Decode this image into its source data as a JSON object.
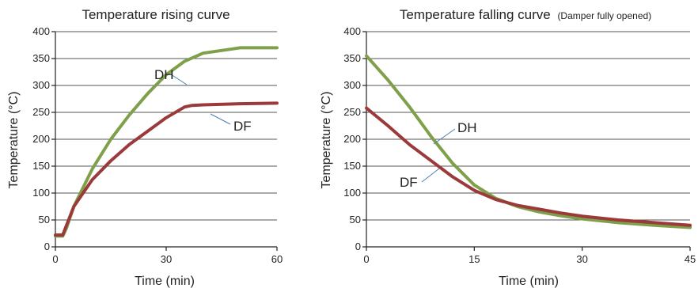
{
  "chart_data": [
    {
      "type": "line",
      "title": "Temperature rising curve",
      "xlabel": "Time (min)",
      "ylabel": "Temperature (°C)",
      "xlim": [
        0,
        60
      ],
      "ylim": [
        0,
        400
      ],
      "xticks": [
        "0",
        "30",
        "60"
      ],
      "yticks": [
        "0",
        "50",
        "100",
        "150",
        "200",
        "250",
        "300",
        "350",
        "400"
      ],
      "grid": true,
      "series": [
        {
          "name": "DH",
          "color": "#7fa04a",
          "x": [
            0,
            2,
            3,
            5,
            10,
            15,
            20,
            25,
            30,
            35,
            40,
            45,
            48,
            50,
            55,
            60
          ],
          "y": [
            20,
            20,
            35,
            75,
            145,
            200,
            245,
            285,
            320,
            345,
            360,
            365,
            368,
            370,
            370,
            370
          ]
        },
        {
          "name": "DF",
          "color": "#9b3a3a",
          "x": [
            0,
            2,
            3,
            5,
            10,
            15,
            20,
            25,
            30,
            35,
            37,
            40,
            50,
            60
          ],
          "y": [
            22,
            22,
            40,
            75,
            125,
            160,
            190,
            215,
            240,
            260,
            263,
            264,
            266,
            267
          ]
        }
      ]
    },
    {
      "type": "line",
      "title": "Temperature falling curve",
      "title_note": "(Damper fully opened)",
      "xlabel": "Time (min)",
      "ylabel": "Temperature (°C)",
      "xlim": [
        0,
        45
      ],
      "ylim": [
        0,
        400
      ],
      "xticks": [
        "0",
        "15",
        "30",
        "45"
      ],
      "yticks": [
        "0",
        "50",
        "100",
        "150",
        "200",
        "250",
        "300",
        "350",
        "400"
      ],
      "grid": true,
      "series": [
        {
          "name": "DH",
          "color": "#7fa04a",
          "x": [
            0,
            3,
            6,
            9,
            12,
            15,
            18,
            21,
            24,
            27,
            30,
            35,
            40,
            45
          ],
          "y": [
            355,
            310,
            260,
            205,
            155,
            115,
            90,
            75,
            65,
            58,
            52,
            45,
            40,
            36
          ]
        },
        {
          "name": "DF",
          "color": "#9b3a3a",
          "x": [
            0,
            3,
            6,
            9,
            12,
            15,
            18,
            21,
            24,
            27,
            30,
            35,
            40,
            45
          ],
          "y": [
            258,
            225,
            190,
            160,
            130,
            105,
            88,
            77,
            70,
            63,
            57,
            50,
            45,
            40
          ]
        }
      ]
    }
  ]
}
